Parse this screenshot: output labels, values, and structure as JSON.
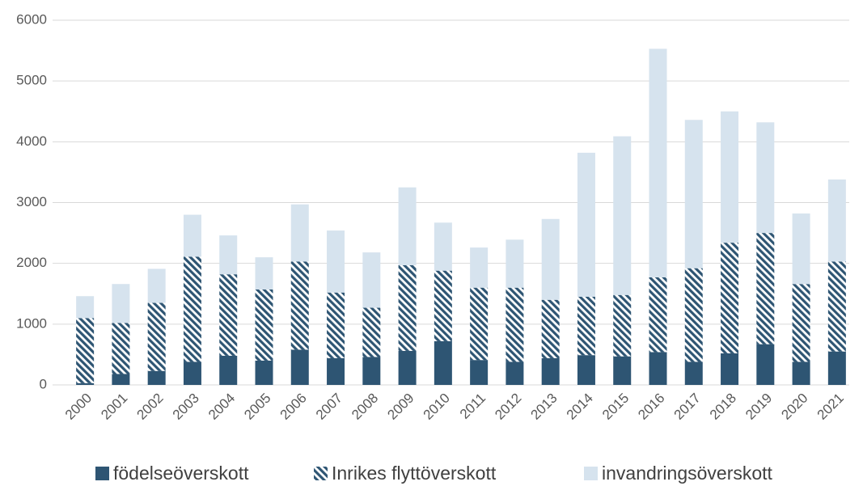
{
  "chart_data": {
    "type": "stacked_bar",
    "categories": [
      "2000",
      "2001",
      "2002",
      "2003",
      "2004",
      "2005",
      "2006",
      "2007",
      "2008",
      "2009",
      "2010",
      "2011",
      "2012",
      "2013",
      "2014",
      "2015",
      "2016",
      "2017",
      "2018",
      "2019",
      "2020",
      "2021"
    ],
    "series": [
      {
        "name": "födelseöverskott",
        "color": "#2e5573",
        "values": [
          30,
          180,
          230,
          380,
          480,
          400,
          580,
          440,
          460,
          560,
          720,
          410,
          380,
          440,
          490,
          470,
          540,
          380,
          520,
          670,
          380,
          550
        ]
      },
      {
        "name": "Inrikes flyttöverskott",
        "color": "#2e5573",
        "hatch": true,
        "values": [
          1070,
          840,
          1120,
          1730,
          1340,
          1170,
          1450,
          1080,
          810,
          1410,
          1160,
          1190,
          1220,
          960,
          960,
          1010,
          1230,
          1540,
          1820,
          1830,
          1280,
          1480
        ]
      },
      {
        "name": "invandringsöverskott",
        "color": "#d6e3ee",
        "values": [
          360,
          640,
          560,
          690,
          640,
          530,
          940,
          1020,
          910,
          1280,
          790,
          660,
          790,
          1330,
          2370,
          2610,
          3760,
          2440,
          2160,
          1820,
          1160,
          1350
        ]
      }
    ],
    "ylim": [
      0,
      6000
    ],
    "yticks": [
      0,
      1000,
      2000,
      3000,
      4000,
      5000,
      6000
    ],
    "grid": true,
    "legend": "bottom"
  }
}
